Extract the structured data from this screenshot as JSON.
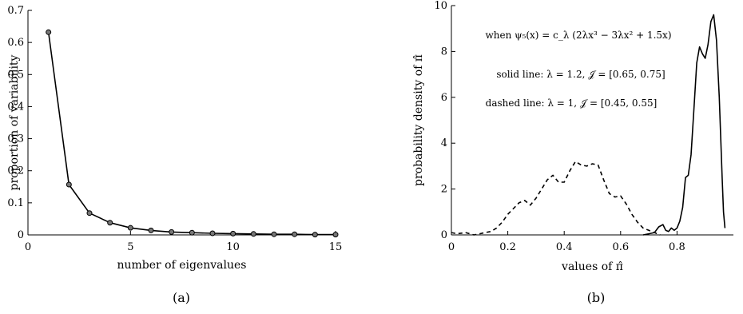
{
  "chart_data": [
    {
      "type": "line",
      "panel_label": "(a)",
      "xlabel": "number of eigenvalues",
      "ylabel": "proportion of variability",
      "xlim": [
        0,
        15
      ],
      "ylim": [
        0,
        0.7
      ],
      "xticks": [
        0,
        5,
        10,
        15
      ],
      "yticks": [
        0,
        0.1,
        0.2,
        0.3,
        0.4,
        0.5,
        0.6,
        0.7
      ],
      "xtick_labels": [
        "0",
        "5",
        "10",
        "15"
      ],
      "ytick_labels": [
        "0",
        "0.1",
        "0.2",
        "0.3",
        "0.4",
        "0.5",
        "0.6",
        "0.7"
      ],
      "markers": "circle",
      "grid": false,
      "x": [
        1,
        2,
        3,
        4,
        5,
        6,
        7,
        8,
        9,
        10,
        11,
        12,
        13,
        14,
        15
      ],
      "y": [
        0.632,
        0.157,
        0.068,
        0.038,
        0.022,
        0.014,
        0.009,
        0.007,
        0.005,
        0.004,
        0.003,
        0.002,
        0.002,
        0.001,
        0.001
      ]
    },
    {
      "type": "line",
      "panel_label": "(b)",
      "xlabel": "values of π̂",
      "ylabel": "probability density of π̂",
      "xlim": [
        0,
        1
      ],
      "ylim": [
        0,
        10
      ],
      "xticks": [
        0,
        0.2,
        0.4,
        0.6,
        0.8
      ],
      "yticks": [
        0,
        2,
        4,
        6,
        8,
        10
      ],
      "xtick_labels": [
        "0",
        "0.2",
        "0.4",
        "0.6",
        "0.8"
      ],
      "ytick_labels": [
        "0",
        "2",
        "4",
        "6",
        "8",
        "10"
      ],
      "grid": false,
      "annotations": [
        "when ψ₅(x) = c_λ (2λx³ − 3λx² + 1.5x)",
        "solid line: λ = 1.2, 𝒥 = [0.65, 0.75]",
        "dashed line: λ = 1, 𝒥 = [0.45, 0.55]"
      ],
      "series": [
        {
          "style": "solid",
          "x": [
            0.68,
            0.7,
            0.72,
            0.735,
            0.75,
            0.76,
            0.77,
            0.78,
            0.79,
            0.8,
            0.81,
            0.82,
            0.83,
            0.84,
            0.85,
            0.86,
            0.87,
            0.88,
            0.89,
            0.9,
            0.91,
            0.92,
            0.93,
            0.94,
            0.95,
            0.96,
            0.965,
            0.97
          ],
          "y": [
            0.0,
            0.05,
            0.1,
            0.35,
            0.45,
            0.2,
            0.15,
            0.3,
            0.2,
            0.3,
            0.6,
            1.2,
            2.5,
            2.6,
            3.5,
            5.5,
            7.5,
            8.2,
            7.9,
            7.7,
            8.3,
            9.3,
            9.6,
            8.5,
            6.0,
            2.5,
            1.0,
            0.3
          ]
        },
        {
          "style": "dashed",
          "x": [
            0.0,
            0.02,
            0.05,
            0.08,
            0.1,
            0.12,
            0.14,
            0.16,
            0.18,
            0.2,
            0.22,
            0.24,
            0.26,
            0.28,
            0.3,
            0.32,
            0.34,
            0.36,
            0.38,
            0.4,
            0.42,
            0.44,
            0.46,
            0.48,
            0.5,
            0.52,
            0.54,
            0.56,
            0.58,
            0.6,
            0.62,
            0.64,
            0.66,
            0.68,
            0.7,
            0.72,
            0.74
          ],
          "y": [
            0.1,
            0.05,
            0.1,
            0.0,
            0.05,
            0.1,
            0.15,
            0.3,
            0.55,
            0.9,
            1.15,
            1.4,
            1.5,
            1.3,
            1.6,
            2.0,
            2.4,
            2.6,
            2.3,
            2.3,
            2.8,
            3.2,
            3.05,
            3.0,
            3.1,
            3.05,
            2.4,
            1.8,
            1.65,
            1.7,
            1.35,
            0.9,
            0.55,
            0.3,
            0.2,
            0.1,
            0.0
          ]
        }
      ]
    }
  ]
}
